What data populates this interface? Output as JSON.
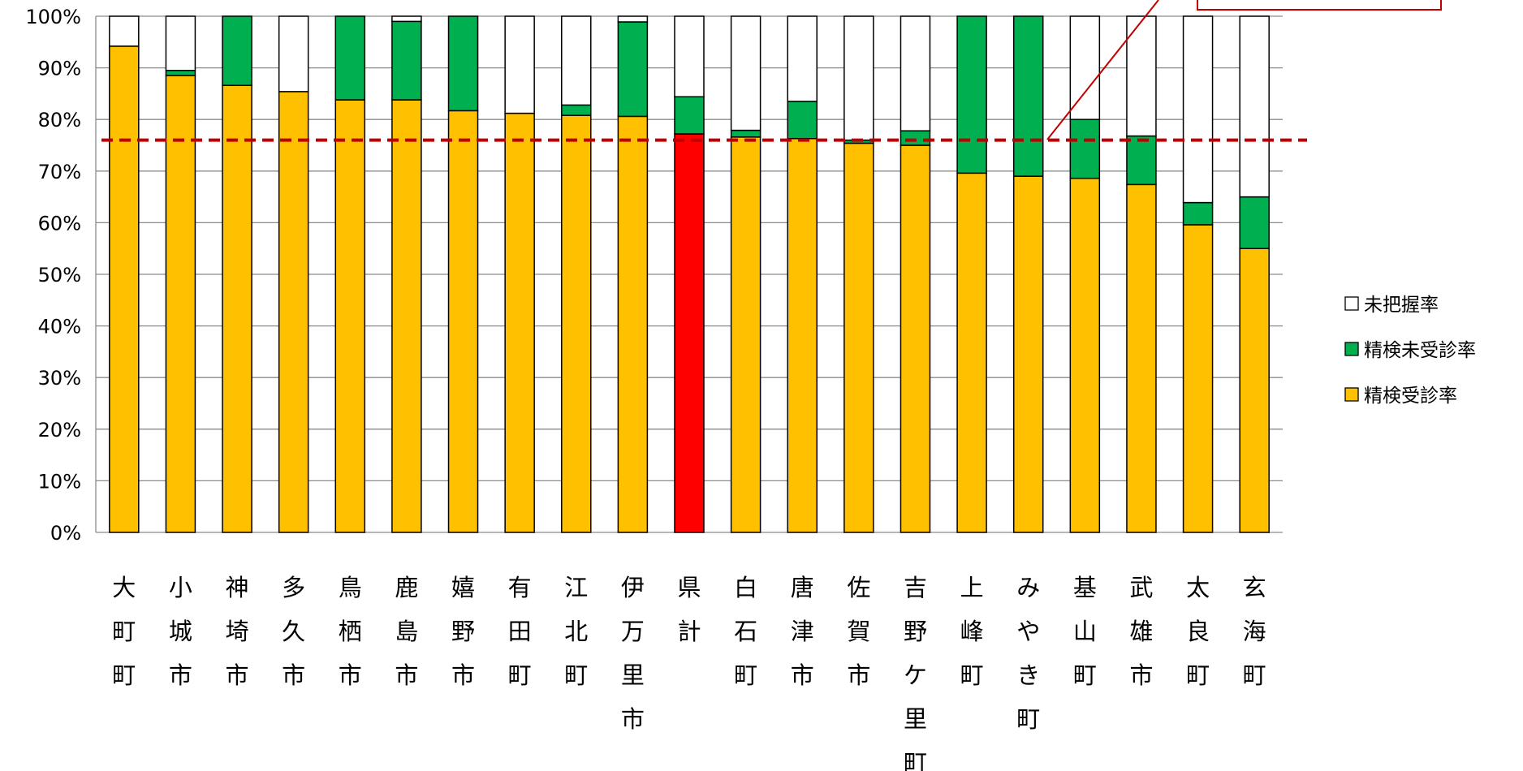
{
  "chart_data": {
    "type": "bar",
    "stacked": true,
    "categories": [
      "大町町",
      "小城市",
      "神埼市",
      "多久市",
      "鳥栖市",
      "鹿島市",
      "嬉野市",
      "有田町",
      "江北町",
      "伊万里市",
      "県計",
      "白石町",
      "唐津市",
      "佐賀市",
      "吉野ケ里町",
      "上峰町",
      "みやき町",
      "基山町",
      "武雄市",
      "太良町",
      "玄海町"
    ],
    "series": [
      {
        "name": "精検受診率",
        "color": "#FFC000",
        "values": [
          94.2,
          88.5,
          86.6,
          85.4,
          83.8,
          83.8,
          81.7,
          81.2,
          80.8,
          80.6,
          77.2,
          76.6,
          76.3,
          75.4,
          75.0,
          69.6,
          69.0,
          68.6,
          67.4,
          59.6,
          55.0
        ]
      },
      {
        "name": "精検未受診率",
        "color": "#00B050",
        "values": [
          0.0,
          1.0,
          13.4,
          0.0,
          16.2,
          15.2,
          18.3,
          0.0,
          2.0,
          18.3,
          7.2,
          1.3,
          7.2,
          0.6,
          2.8,
          30.4,
          31.0,
          11.4,
          9.4,
          4.3,
          10.0
        ]
      },
      {
        "name": "未把握率",
        "color": "#FFFFFF",
        "values": [
          5.8,
          10.5,
          0.0,
          14.6,
          0.0,
          1.0,
          0.0,
          18.8,
          17.2,
          1.1,
          15.6,
          22.1,
          16.5,
          24.0,
          22.2,
          0.0,
          0.0,
          20.0,
          23.2,
          36.1,
          35.0
        ]
      }
    ],
    "highlight": {
      "category": "県計",
      "color": "#FF0000"
    },
    "reference_line": {
      "value": 76,
      "color": "#C00000",
      "style": "dashed"
    },
    "yticks": [
      "0%",
      "10%",
      "20%",
      "30%",
      "40%",
      "50%",
      "60%",
      "70%",
      "80%",
      "90%",
      "100%"
    ],
    "ylim": [
      0,
      100
    ],
    "grid": true,
    "legend_position": "right",
    "legend": [
      "未把握率",
      "精検未受診率",
      "精検受診率"
    ],
    "title": "",
    "xlabel": "",
    "ylabel": ""
  }
}
